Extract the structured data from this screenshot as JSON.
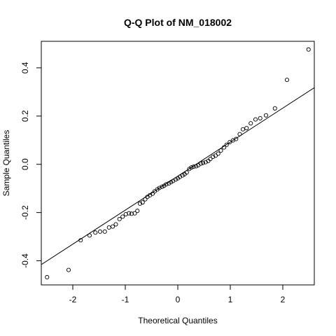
{
  "chart_data": {
    "type": "scatter",
    "title": "Q-Q Plot of NM_018002",
    "xlabel": "Theoretical Quantiles",
    "ylabel": "Sample Quantiles",
    "xlim": [
      -2.6,
      2.6
    ],
    "ylim": [
      -0.5,
      0.51
    ],
    "x_ticks": [
      -2,
      -1,
      0,
      1,
      2
    ],
    "y_ticks": [
      -0.4,
      -0.2,
      0.0,
      0.2,
      0.4
    ],
    "x_tick_labels": [
      "-2",
      "-1",
      "0",
      "1",
      "2"
    ],
    "y_tick_labels": [
      "-0.4",
      "-0.2",
      "0.0",
      "0.2",
      "0.4"
    ],
    "grid": false,
    "points": [
      [
        -2.49,
        -0.468
      ],
      [
        -2.08,
        -0.438
      ],
      [
        -1.85,
        -0.315
      ],
      [
        -1.68,
        -0.295
      ],
      [
        -1.57,
        -0.283
      ],
      [
        -1.48,
        -0.279
      ],
      [
        -1.39,
        -0.279
      ],
      [
        -1.31,
        -0.262
      ],
      [
        -1.24,
        -0.258
      ],
      [
        -1.18,
        -0.249
      ],
      [
        -1.11,
        -0.227
      ],
      [
        -1.05,
        -0.217
      ],
      [
        -0.99,
        -0.207
      ],
      [
        -0.93,
        -0.203
      ],
      [
        -0.88,
        -0.205
      ],
      [
        -0.82,
        -0.203
      ],
      [
        -0.77,
        -0.193
      ],
      [
        -0.72,
        -0.163
      ],
      [
        -0.67,
        -0.158
      ],
      [
        -0.62,
        -0.145
      ],
      [
        -0.58,
        -0.135
      ],
      [
        -0.53,
        -0.128
      ],
      [
        -0.48,
        -0.122
      ],
      [
        -0.44,
        -0.112
      ],
      [
        -0.39,
        -0.104
      ],
      [
        -0.35,
        -0.098
      ],
      [
        -0.3,
        -0.093
      ],
      [
        -0.26,
        -0.089
      ],
      [
        -0.22,
        -0.083
      ],
      [
        -0.17,
        -0.079
      ],
      [
        -0.13,
        -0.074
      ],
      [
        -0.09,
        -0.069
      ],
      [
        -0.04,
        -0.063
      ],
      [
        0.0,
        -0.058
      ],
      [
        0.04,
        -0.052
      ],
      [
        0.09,
        -0.046
      ],
      [
        0.13,
        -0.041
      ],
      [
        0.17,
        -0.034
      ],
      [
        0.22,
        -0.019
      ],
      [
        0.26,
        -0.013
      ],
      [
        0.3,
        -0.01
      ],
      [
        0.35,
        -0.008
      ],
      [
        0.39,
        -0.004
      ],
      [
        0.44,
        0.003
      ],
      [
        0.48,
        0.006
      ],
      [
        0.53,
        0.009
      ],
      [
        0.58,
        0.014
      ],
      [
        0.62,
        0.022
      ],
      [
        0.67,
        0.031
      ],
      [
        0.72,
        0.036
      ],
      [
        0.77,
        0.044
      ],
      [
        0.82,
        0.057
      ],
      [
        0.88,
        0.07
      ],
      [
        0.93,
        0.081
      ],
      [
        0.99,
        0.092
      ],
      [
        1.05,
        0.099
      ],
      [
        1.11,
        0.105
      ],
      [
        1.18,
        0.125
      ],
      [
        1.24,
        0.145
      ],
      [
        1.31,
        0.15
      ],
      [
        1.39,
        0.17
      ],
      [
        1.48,
        0.186
      ],
      [
        1.57,
        0.191
      ],
      [
        1.68,
        0.203
      ],
      [
        1.85,
        0.232
      ],
      [
        2.08,
        0.35
      ],
      [
        2.49,
        0.476
      ]
    ],
    "reference_line": {
      "intercept": -0.049,
      "slope": 0.141
    },
    "point_color": "#000000",
    "line_color": "#000000"
  }
}
